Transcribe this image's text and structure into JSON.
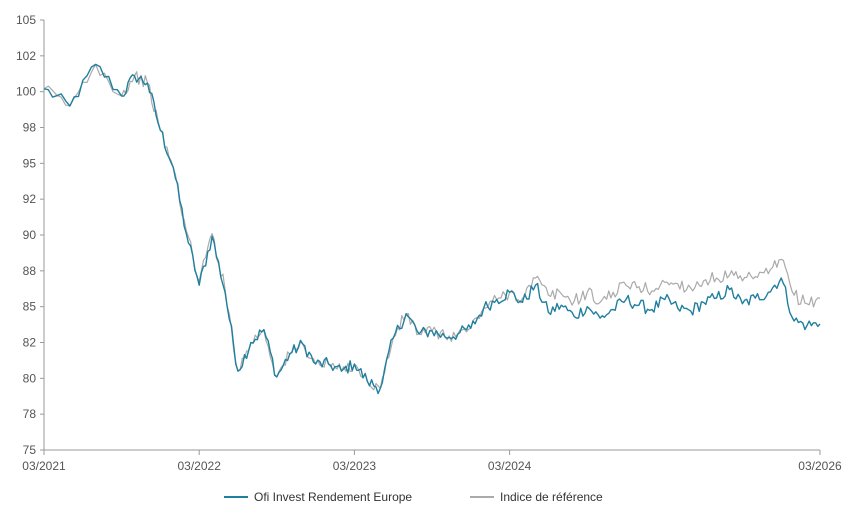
{
  "chart_data": {
    "type": "line",
    "title": "",
    "xlabel": "",
    "ylabel": "",
    "ylim": [
      75,
      105
    ],
    "xlim": [
      "2021-03",
      "2026-03"
    ],
    "y_ticks": [
      "75",
      "78",
      "80",
      "82",
      "85",
      "88",
      "90",
      "92",
      "95",
      "98",
      "100",
      "102",
      "105"
    ],
    "y_tick_values": [
      75,
      77.5,
      80,
      82.5,
      85,
      87.5,
      90,
      92.5,
      95,
      97.5,
      100,
      102.5,
      105
    ],
    "x_ticks": [
      {
        "label": "03/2021",
        "date": "2021-03"
      },
      {
        "label": "03/2022",
        "date": "2022-03"
      },
      {
        "label": "03/2023",
        "date": "2023-03"
      },
      {
        "label": "03/2024",
        "date": "2024-03"
      },
      {
        "label": "03/2026",
        "date": "2026-03"
      }
    ],
    "grid": false,
    "legend_position": "bottom-center",
    "x": [
      "2021-03",
      "2021-05",
      "2021-07",
      "2021-09",
      "2021-10",
      "2021-11",
      "2021-12",
      "2022-01",
      "2022-02",
      "2022-03",
      "2022-04",
      "2022-05",
      "2022-06",
      "2022-07",
      "2022-08",
      "2022-09",
      "2022-10",
      "2022-11",
      "2022-12",
      "2023-01",
      "2023-02",
      "2023-03",
      "2023-04",
      "2023-05",
      "2023-06",
      "2023-07",
      "2023-08",
      "2023-09",
      "2023-10",
      "2023-11",
      "2023-12",
      "2024-01",
      "2024-02",
      "2024-03",
      "2024-04",
      "2024-05",
      "2024-06",
      "2024-07",
      "2024-08",
      "2024-09",
      "2024-10",
      "2024-11",
      "2024-12",
      "2025-01",
      "2025-02",
      "2025-03",
      "2025-04",
      "2025-05",
      "2025-06",
      "2025-07",
      "2025-08",
      "2025-09",
      "2025-10",
      "2025-11",
      "2025-12",
      "2026-01",
      "2026-02",
      "2026-03"
    ],
    "series": [
      {
        "name": "Ofi Invest Rendement Europe",
        "color": "#1f7f9e",
        "values": [
          100.2,
          99.0,
          101.9,
          99.7,
          101.1,
          100.6,
          97.3,
          94.7,
          90.1,
          86.5,
          89.9,
          86.0,
          80.5,
          82.5,
          83.4,
          80.1,
          81.7,
          82.4,
          81.0,
          81.0,
          80.5,
          81.0,
          79.8,
          79.3,
          82.8,
          84.5,
          83.1,
          83.3,
          82.9,
          83.1,
          83.5,
          84.9,
          85.5,
          86.0,
          85.3,
          86.5,
          84.6,
          85.1,
          84.3,
          85.0,
          84.2,
          84.8,
          85.5,
          85.1,
          84.8,
          85.5,
          84.9,
          84.7,
          85.3,
          85.6,
          86.2,
          85.2,
          85.6,
          86.0,
          87.0,
          84.0,
          83.7,
          83.8
        ]
      },
      {
        "name": "Indice de référence",
        "color": "#aaaaaa",
        "values": [
          100.2,
          99.0,
          101.9,
          99.7,
          101.1,
          100.6,
          97.3,
          94.7,
          90.3,
          86.8,
          90.1,
          86.2,
          80.5,
          82.5,
          83.4,
          80.1,
          81.7,
          82.4,
          81.0,
          81.0,
          80.5,
          81.0,
          79.8,
          79.3,
          82.8,
          84.5,
          83.1,
          83.3,
          82.9,
          83.1,
          83.5,
          84.9,
          85.5,
          86.0,
          85.6,
          87.0,
          85.8,
          85.9,
          85.4,
          86.0,
          85.3,
          86.0,
          86.5,
          86.4,
          86.1,
          86.7,
          86.6,
          86.3,
          86.8,
          87.0,
          87.2,
          86.8,
          87.1,
          87.3,
          88.3,
          85.8,
          85.2,
          85.6
        ]
      }
    ]
  }
}
